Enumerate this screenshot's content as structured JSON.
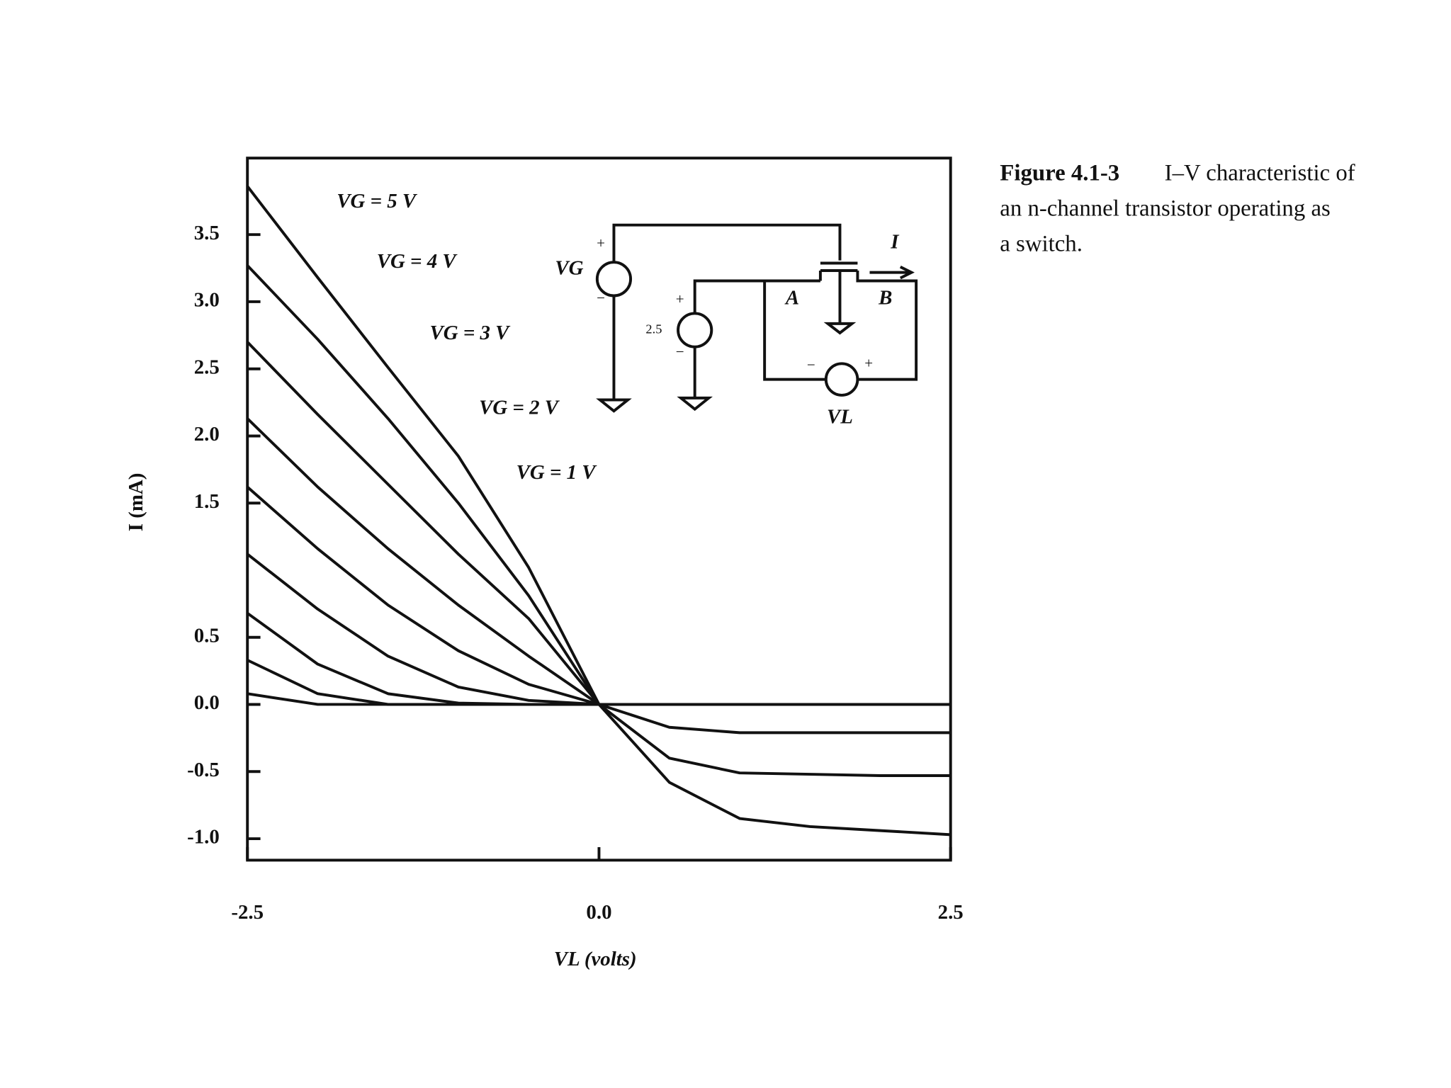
{
  "chart_data": {
    "type": "line",
    "x_label": "VL (volts)",
    "y_label": "I (mA)",
    "x": [
      -2.5,
      -2,
      -1.5,
      -1,
      -0.5,
      0,
      0.5,
      1,
      1.5,
      2,
      2.5
    ],
    "series": [
      {
        "color": "#111111",
        "values": [
          3.86,
          3.18,
          2.51,
          1.85,
          1.02,
          0,
          -0.58,
          -0.85,
          -0.91,
          -0.94,
          -0.97
        ]
      },
      {
        "color": "#111111",
        "values": [
          3.27,
          2.72,
          2.13,
          1.5,
          0.81,
          0,
          -0.4,
          -0.51,
          -0.52,
          -0.53,
          -0.53
        ]
      },
      {
        "color": "#111111",
        "values": [
          2.7,
          2.16,
          1.64,
          1.12,
          0.64,
          0,
          -0.17,
          -0.21,
          -0.21,
          -0.21,
          -0.21
        ]
      },
      {
        "color": "#111111",
        "values": [
          2.13,
          1.62,
          1.16,
          0.74,
          0.36,
          0,
          0,
          0,
          0,
          0,
          0
        ]
      },
      {
        "color": "#111111",
        "values": [
          1.62,
          1.16,
          0.74,
          0.4,
          0.15,
          0,
          0,
          0,
          0,
          0,
          0
        ]
      },
      {
        "color": "#111111",
        "values": [
          1.12,
          0.71,
          0.36,
          0.13,
          0.03,
          0,
          0,
          0,
          0,
          0,
          0
        ]
      },
      {
        "color": "#111111",
        "values": [
          0.68,
          0.3,
          0.08,
          0.01,
          0,
          0,
          0,
          0,
          0,
          0,
          0
        ]
      },
      {
        "color": "#111111",
        "values": [
          0.33,
          0.08,
          0,
          0,
          0,
          0,
          0,
          0,
          0,
          0,
          0
        ]
      },
      {
        "color": "#111111",
        "values": [
          0.08,
          0,
          0,
          0,
          0,
          0,
          0,
          0,
          0,
          0,
          0
        ]
      }
    ],
    "xlim": [
      -2.5,
      2.5
    ],
    "xticks": [
      -2.5,
      {
        "value": 0,
        "label": "0.0"
      },
      2.5
    ],
    "ylim": [
      -1.16,
      4.07
    ],
    "yticks": [
      3.5,
      {
        "value": 3,
        "label": "3.0"
      },
      2.5,
      {
        "value": 2,
        "label": "2.0"
      },
      1.5,
      0.5,
      {
        "value": 0,
        "label": "0.0"
      },
      -0.5,
      {
        "value": -1,
        "label": "-1.0"
      }
    ],
    "grid": false,
    "annotations": [
      "VG = 5 V",
      "VG = 4 V",
      "VG = 3 V",
      "VG = 2 V",
      "VG = 1 V"
    ],
    "inset": {
      "vg": "VG",
      "source": "2.5",
      "a": "A",
      "b": "B",
      "vl": "VL",
      "current": "I",
      "signs": [
        "+",
        "−",
        "+",
        "−",
        "−",
        "+"
      ]
    },
    "caption": {
      "label": "Figure 4.1-3",
      "lines": [
        "I–V characteristic of",
        "an n-channel transistor operating as",
        "a switch."
      ]
    }
  }
}
